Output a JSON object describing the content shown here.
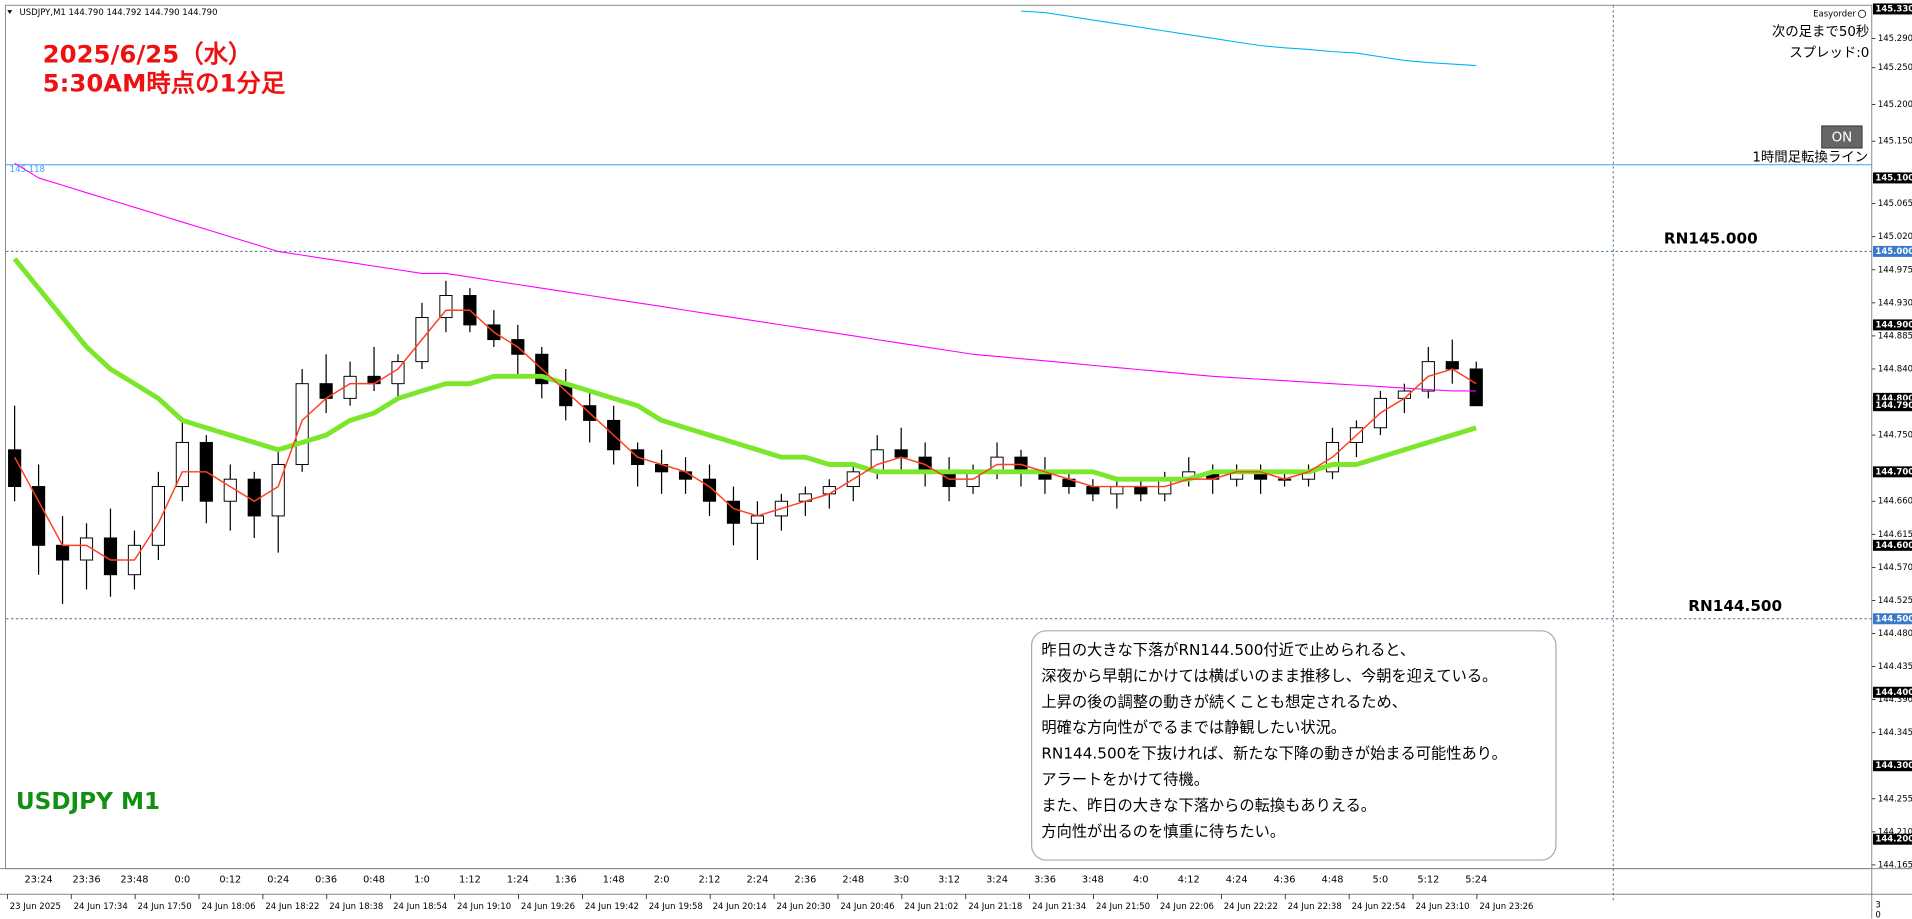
{
  "header": "USDJPY,M1  144.790 144.792 144.790 144.790",
  "annotation": [
    "2025/6/25（水）",
    "5:30AM時点の1分足"
  ],
  "chart_label": "USDJPY M1",
  "panel": {
    "brand": "Easyorder",
    "countdown": "次の足まで50秒",
    "spread": "スプレッド:0",
    "button": "ON"
  },
  "comment": [
    "昨日の大きな下落がRN144.500付近で止められると、",
    "深夜から早朝にかけては横ばいのまま推移し、今朝を迎えている。",
    "上昇の後の調整の動きが続くことも想定されるため、",
    "明確な方向性がでるまでは静観したい状況。",
    "RN144.500を下抜ければ、新たな下降の動きが始まる可能性あり。",
    "アラートをかけて待機。",
    "また、昨日の大きな下落からの転換もありえる。",
    "方向性が出るのを慎重に待ちたい。"
  ],
  "chart_data": {
    "type": "candlestick",
    "up_color": "#ffffff",
    "down_color": "#000000",
    "wick_color": "#000000",
    "categories": [
      null,
      "23:24",
      null,
      "23:36",
      null,
      "23:48",
      null,
      "0:0",
      null,
      "0:12",
      null,
      "0:24",
      null,
      "0:36",
      null,
      "0:48",
      null,
      "1:0",
      null,
      "1:12",
      null,
      "1:24",
      null,
      "1:36",
      null,
      "1:48",
      null,
      "2:0",
      null,
      "2:12",
      null,
      "2:24",
      null,
      "2:36",
      null,
      "2:48",
      null,
      "3:0",
      null,
      "3:12",
      null,
      "3:24",
      null,
      "3:36",
      null,
      "3:48",
      null,
      "4:0",
      null,
      "4:12",
      null,
      "4:24",
      null,
      "4:36",
      null,
      "4:48",
      null,
      "5:0",
      null,
      "5:12",
      null,
      "5:24"
    ],
    "open": [
      144.73,
      144.68,
      144.6,
      144.58,
      144.61,
      144.56,
      144.6,
      144.68,
      144.74,
      144.66,
      144.69,
      144.64,
      144.71,
      144.82,
      144.8,
      144.83,
      144.82,
      144.85,
      144.91,
      144.94,
      144.9,
      144.88,
      144.86,
      144.82,
      144.79,
      144.77,
      144.73,
      144.71,
      144.7,
      144.69,
      144.66,
      144.63,
      144.64,
      144.66,
      144.67,
      144.68,
      144.7,
      144.73,
      144.72,
      144.7,
      144.68,
      144.7,
      144.72,
      144.7,
      144.69,
      144.68,
      144.67,
      144.68,
      144.67,
      144.69,
      144.7,
      144.69,
      144.7,
      144.69,
      144.69,
      144.7,
      144.74,
      144.76,
      144.8,
      144.81,
      144.85,
      144.84
    ],
    "high": [
      144.79,
      144.71,
      144.64,
      144.63,
      144.65,
      144.62,
      144.7,
      144.77,
      144.75,
      144.71,
      144.7,
      144.73,
      144.84,
      144.86,
      144.85,
      144.87,
      144.86,
      144.93,
      144.96,
      144.95,
      144.92,
      144.9,
      144.87,
      144.84,
      144.81,
      144.79,
      144.74,
      144.73,
      144.72,
      144.71,
      144.68,
      144.66,
      144.67,
      144.68,
      144.69,
      144.71,
      144.75,
      144.76,
      144.74,
      144.72,
      144.71,
      144.74,
      144.73,
      144.72,
      144.7,
      144.69,
      144.69,
      144.69,
      144.7,
      144.72,
      144.71,
      144.71,
      144.71,
      144.7,
      144.71,
      144.76,
      144.77,
      144.81,
      144.82,
      144.87,
      144.88,
      144.85
    ],
    "low": [
      144.66,
      144.56,
      144.52,
      144.54,
      144.53,
      144.54,
      144.58,
      144.66,
      144.63,
      144.62,
      144.61,
      144.59,
      144.7,
      144.78,
      144.79,
      144.81,
      144.8,
      144.84,
      144.89,
      144.89,
      144.87,
      144.83,
      144.8,
      144.77,
      144.74,
      144.71,
      144.68,
      144.67,
      144.67,
      144.64,
      144.6,
      144.58,
      144.62,
      144.64,
      144.65,
      144.66,
      144.69,
      144.7,
      144.68,
      144.66,
      144.67,
      144.69,
      144.68,
      144.67,
      144.67,
      144.66,
      144.65,
      144.66,
      144.66,
      144.68,
      144.67,
      144.68,
      144.67,
      144.68,
      144.68,
      144.69,
      144.72,
      144.75,
      144.78,
      144.8,
      144.82,
      144.79
    ],
    "close": [
      144.68,
      144.6,
      144.58,
      144.61,
      144.56,
      144.6,
      144.68,
      144.74,
      144.66,
      144.69,
      144.64,
      144.71,
      144.82,
      144.8,
      144.83,
      144.82,
      144.85,
      144.91,
      144.94,
      144.9,
      144.88,
      144.86,
      144.82,
      144.79,
      144.77,
      144.73,
      144.71,
      144.7,
      144.69,
      144.66,
      144.63,
      144.64,
      144.66,
      144.67,
      144.68,
      144.7,
      144.73,
      144.72,
      144.7,
      144.68,
      144.7,
      144.72,
      144.7,
      144.69,
      144.68,
      144.67,
      144.68,
      144.67,
      144.69,
      144.7,
      144.69,
      144.7,
      144.69,
      144.69,
      144.7,
      144.74,
      144.76,
      144.8,
      144.81,
      144.85,
      144.84,
      144.79
    ],
    "series": [
      {
        "color": "#ff00ff",
        "width": 0.9,
        "values": [
          145.12,
          145.1,
          145.09,
          145.08,
          145.07,
          145.06,
          145.05,
          145.04,
          145.03,
          145.02,
          145.01,
          145.0,
          144.995,
          144.99,
          144.985,
          144.98,
          144.975,
          144.97,
          144.97,
          144.965,
          144.96,
          144.955,
          144.95,
          144.945,
          144.94,
          144.935,
          144.93,
          144.925,
          144.92,
          144.915,
          144.91,
          144.905,
          144.9,
          144.895,
          144.89,
          144.885,
          144.88,
          144.875,
          144.87,
          144.865,
          144.86,
          144.857,
          144.854,
          144.851,
          144.848,
          144.845,
          144.842,
          144.839,
          144.836,
          144.833,
          144.83,
          144.828,
          144.826,
          144.824,
          144.822,
          144.82,
          144.818,
          144.816,
          144.814,
          144.812,
          144.81,
          144.81
        ]
      },
      {
        "color": "#00b4f0",
        "width": 0.9,
        "values": [
          null,
          null,
          null,
          null,
          null,
          null,
          null,
          null,
          null,
          null,
          null,
          null,
          null,
          null,
          null,
          null,
          null,
          null,
          null,
          null,
          null,
          null,
          null,
          null,
          null,
          null,
          null,
          null,
          null,
          null,
          null,
          null,
          null,
          null,
          null,
          null,
          null,
          null,
          null,
          null,
          null,
          null,
          145.327,
          145.325,
          145.32,
          145.315,
          145.31,
          145.305,
          145.3,
          145.295,
          145.29,
          145.285,
          145.28,
          145.277,
          145.275,
          145.272,
          145.27,
          145.265,
          145.26,
          145.257,
          145.255,
          145.253
        ]
      },
      {
        "color": "#7ce62a",
        "width": 4,
        "values": [
          144.99,
          144.95,
          144.91,
          144.87,
          144.84,
          144.82,
          144.8,
          144.77,
          144.76,
          144.75,
          144.74,
          144.73,
          144.74,
          144.75,
          144.77,
          144.78,
          144.8,
          144.81,
          144.82,
          144.82,
          144.83,
          144.83,
          144.83,
          144.82,
          144.81,
          144.8,
          144.79,
          144.77,
          144.76,
          144.75,
          144.74,
          144.73,
          144.72,
          144.72,
          144.71,
          144.71,
          144.7,
          144.7,
          144.7,
          144.7,
          144.7,
          144.7,
          144.7,
          144.7,
          144.7,
          144.7,
          144.69,
          144.69,
          144.69,
          144.69,
          144.7,
          144.7,
          144.7,
          144.7,
          144.7,
          144.71,
          144.71,
          144.72,
          144.73,
          144.74,
          144.75,
          144.76
        ]
      },
      {
        "color": "#ff4020",
        "width": 1.2,
        "values": [
          144.72,
          144.66,
          144.6,
          144.6,
          144.58,
          144.58,
          144.63,
          144.7,
          144.7,
          144.68,
          144.66,
          144.68,
          144.77,
          144.8,
          144.82,
          144.82,
          144.84,
          144.88,
          144.92,
          144.92,
          144.89,
          144.87,
          144.84,
          144.81,
          144.78,
          144.75,
          144.72,
          144.71,
          144.7,
          144.68,
          144.65,
          144.64,
          144.65,
          144.66,
          144.67,
          144.69,
          144.71,
          144.72,
          144.71,
          144.69,
          144.69,
          144.71,
          144.71,
          144.7,
          144.69,
          144.68,
          144.68,
          144.68,
          144.68,
          144.69,
          144.69,
          144.7,
          144.7,
          144.69,
          144.7,
          144.72,
          144.75,
          144.78,
          144.8,
          144.83,
          144.84,
          144.82
        ]
      }
    ],
    "ylim": [
      144.16,
      145.335
    ],
    "yticks": [
      {
        "value": 145.29,
        "label": "145.290"
      },
      {
        "value": 145.25,
        "label": "145.250"
      },
      {
        "value": 145.2,
        "label": "145.200"
      },
      {
        "value": 145.15,
        "label": "145.150"
      },
      {
        "value": 145.065,
        "label": "145.065"
      },
      {
        "value": 145.02,
        "label": "145.020"
      },
      {
        "value": 144.975,
        "label": "144.975"
      },
      {
        "value": 144.93,
        "label": "144.930"
      },
      {
        "value": 144.885,
        "label": "144.885"
      },
      {
        "value": 144.84,
        "label": "144.840"
      },
      {
        "value": 144.75,
        "label": "144.750"
      },
      {
        "value": 144.66,
        "label": "144.660"
      },
      {
        "value": 144.615,
        "label": "144.615"
      },
      {
        "value": 144.57,
        "label": "144.570"
      },
      {
        "value": 144.525,
        "label": "144.525"
      },
      {
        "value": 144.48,
        "label": "144.480"
      },
      {
        "value": 144.435,
        "label": "144.435"
      },
      {
        "value": 144.39,
        "label": "144.390"
      },
      {
        "value": 144.345,
        "label": "144.345"
      },
      {
        "value": 144.255,
        "label": "144.255"
      },
      {
        "value": 144.21,
        "label": "144.210"
      },
      {
        "value": 144.165,
        "label": "144.165"
      }
    ],
    "price_markers": [
      {
        "value": 145.33,
        "label": "145.330",
        "color": "#000000"
      },
      {
        "value": 145.1,
        "label": "145.100",
        "color": "#000000"
      },
      {
        "value": 145,
        "label": "145.000",
        "color": "#3a78c8"
      },
      {
        "value": 144.9,
        "label": "144.900",
        "color": "#000000"
      },
      {
        "value": 144.8,
        "label": "144.800",
        "color": "#000000"
      },
      {
        "value": 144.79,
        "label": "144.790",
        "color": "#000000"
      },
      {
        "value": 144.7,
        "label": "144.700",
        "color": "#000000"
      },
      {
        "value": 144.6,
        "label": "144.600",
        "color": "#000000"
      },
      {
        "value": 144.5,
        "label": "144.500",
        "color": "#3a78c8"
      },
      {
        "value": 144.4,
        "label": "144.400",
        "color": "#000000"
      },
      {
        "value": 144.3,
        "label": "144.300",
        "color": "#000000"
      },
      {
        "value": 144.2,
        "label": "144.200",
        "color": "#000000"
      }
    ],
    "hlines": [
      {
        "value": 145.118,
        "label": "1時間足転換ライン",
        "color": "#3aa0ff",
        "style": "solid"
      },
      {
        "value": 145,
        "label": "RN145.000",
        "color": "#4a6f9a",
        "style": "dotted"
      },
      {
        "value": 144.5,
        "label": "RN144.500",
        "color": "#4a6f9a",
        "style": "dotted"
      }
    ],
    "date_labels": [
      "23 Jun 2025",
      "24 Jun 17:34",
      "24 Jun 17:50",
      "24 Jun 18:06",
      "24 Jun 18:22",
      "24 Jun 18:38",
      "24 Jun 18:54",
      "24 Jun 19:10",
      "24 Jun 19:26",
      "24 Jun 19:42",
      "24 Jun 19:58",
      "24 Jun 20:14",
      "24 Jun 20:30",
      "24 Jun 20:46",
      "24 Jun 21:02",
      "24 Jun 21:18",
      "24 Jun 21:34",
      "24 Jun 21:50",
      "24 Jun 22:06",
      "24 Jun 22:22",
      "24 Jun 22:38",
      "24 Jun 22:54",
      "24 Jun 23:10",
      "24 Jun 23:26"
    ],
    "subwindow_scale": [
      "3",
      "0"
    ]
  }
}
